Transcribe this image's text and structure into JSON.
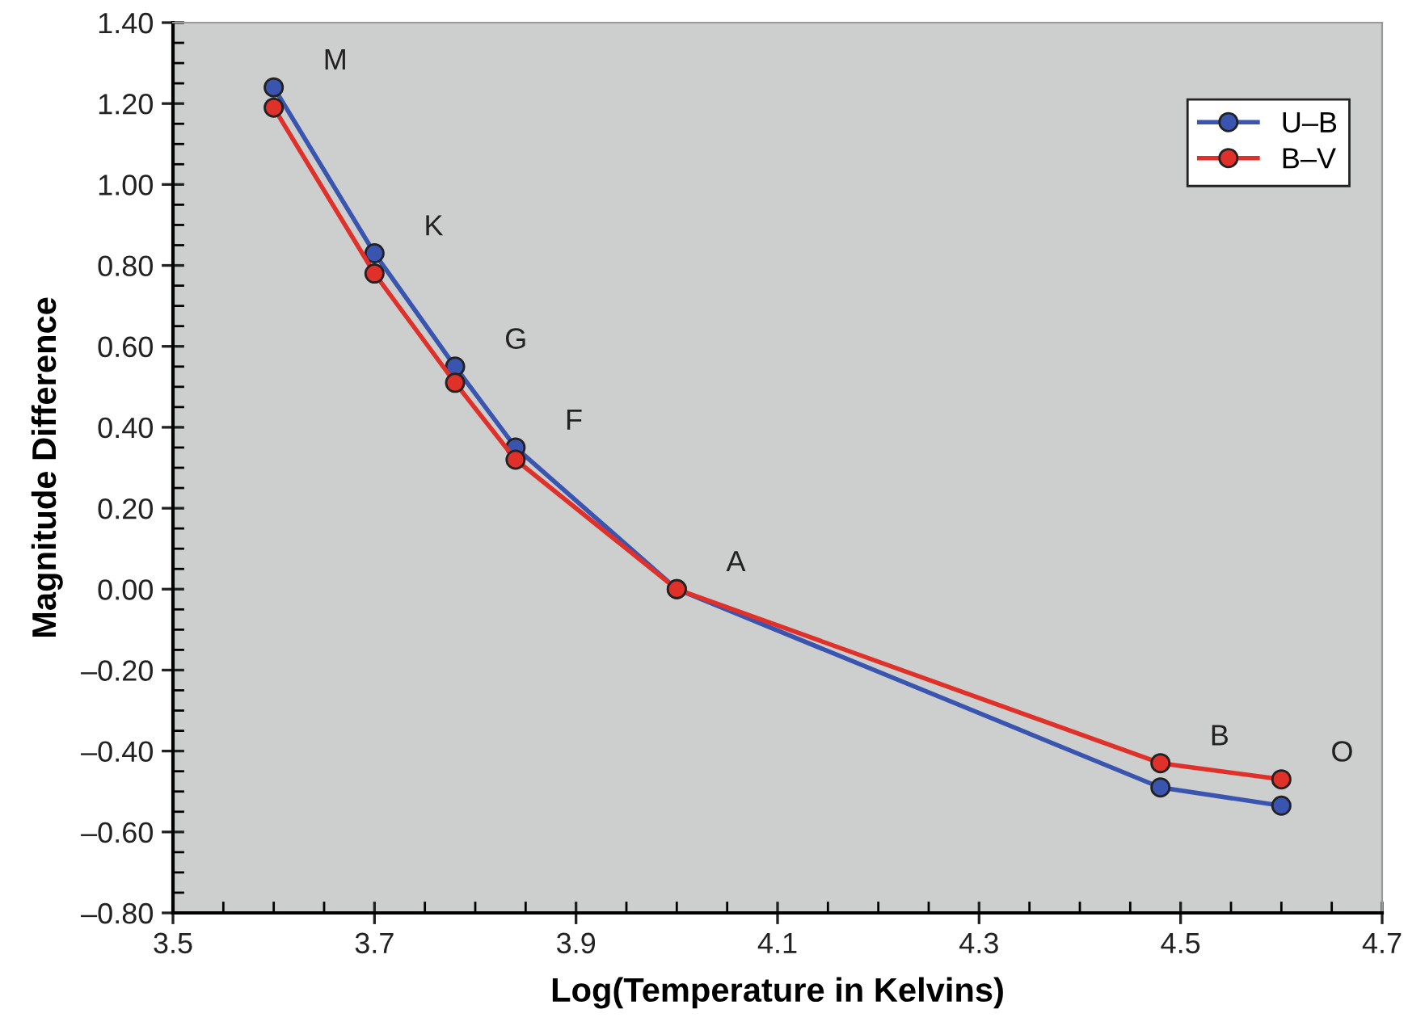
{
  "chart_data": {
    "type": "line",
    "xlabel": "Log(Temperature in Kelvins)",
    "ylabel": "Magnitude Difference",
    "x": [
      3.6,
      3.7,
      3.78,
      3.84,
      4.0,
      4.48,
      4.6
    ],
    "series": [
      {
        "name": "U–B",
        "color": "#3a55b0",
        "values": [
          1.24,
          0.83,
          0.55,
          0.35,
          0.0,
          -0.49,
          -0.535
        ]
      },
      {
        "name": "B–V",
        "color": "#e0302a",
        "values": [
          1.19,
          0.78,
          0.51,
          0.32,
          0.0,
          -0.43,
          -0.47
        ]
      }
    ],
    "annotations": [
      {
        "text": "M",
        "x": 3.6,
        "y": 1.24
      },
      {
        "text": "K",
        "x": 3.7,
        "y": 0.83
      },
      {
        "text": "G",
        "x": 3.78,
        "y": 0.55
      },
      {
        "text": "F",
        "x": 3.84,
        "y": 0.35
      },
      {
        "text": "A",
        "x": 4.0,
        "y": 0.0
      },
      {
        "text": "B",
        "x": 4.48,
        "y": -0.43
      },
      {
        "text": "O",
        "x": 4.6,
        "y": -0.47
      }
    ],
    "xlim": [
      3.5,
      4.7
    ],
    "ylim": [
      -0.8,
      1.4
    ],
    "xticks": [
      3.5,
      3.7,
      3.9,
      4.1,
      4.3,
      4.5,
      4.7
    ],
    "yticks": [
      {
        "value": -0.8,
        "label": "–0.80"
      },
      {
        "value": -0.6,
        "label": "–0.60"
      },
      {
        "value": -0.4,
        "label": "–0.40"
      },
      {
        "value": -0.2,
        "label": "–0.20"
      },
      {
        "value": 0.0,
        "label": "0.00"
      },
      {
        "value": 0.2,
        "label": "0.20"
      },
      {
        "value": 0.4,
        "label": "0.40"
      },
      {
        "value": 0.6,
        "label": "0.60"
      },
      {
        "value": 0.8,
        "label": "0.80"
      },
      {
        "value": 1.0,
        "label": "1.00"
      },
      {
        "value": 1.2,
        "label": "1.20"
      },
      {
        "value": 1.4,
        "label": "1.40"
      }
    ],
    "grid": false,
    "legend": "top right",
    "marker": "circle",
    "line_style": "solid"
  }
}
